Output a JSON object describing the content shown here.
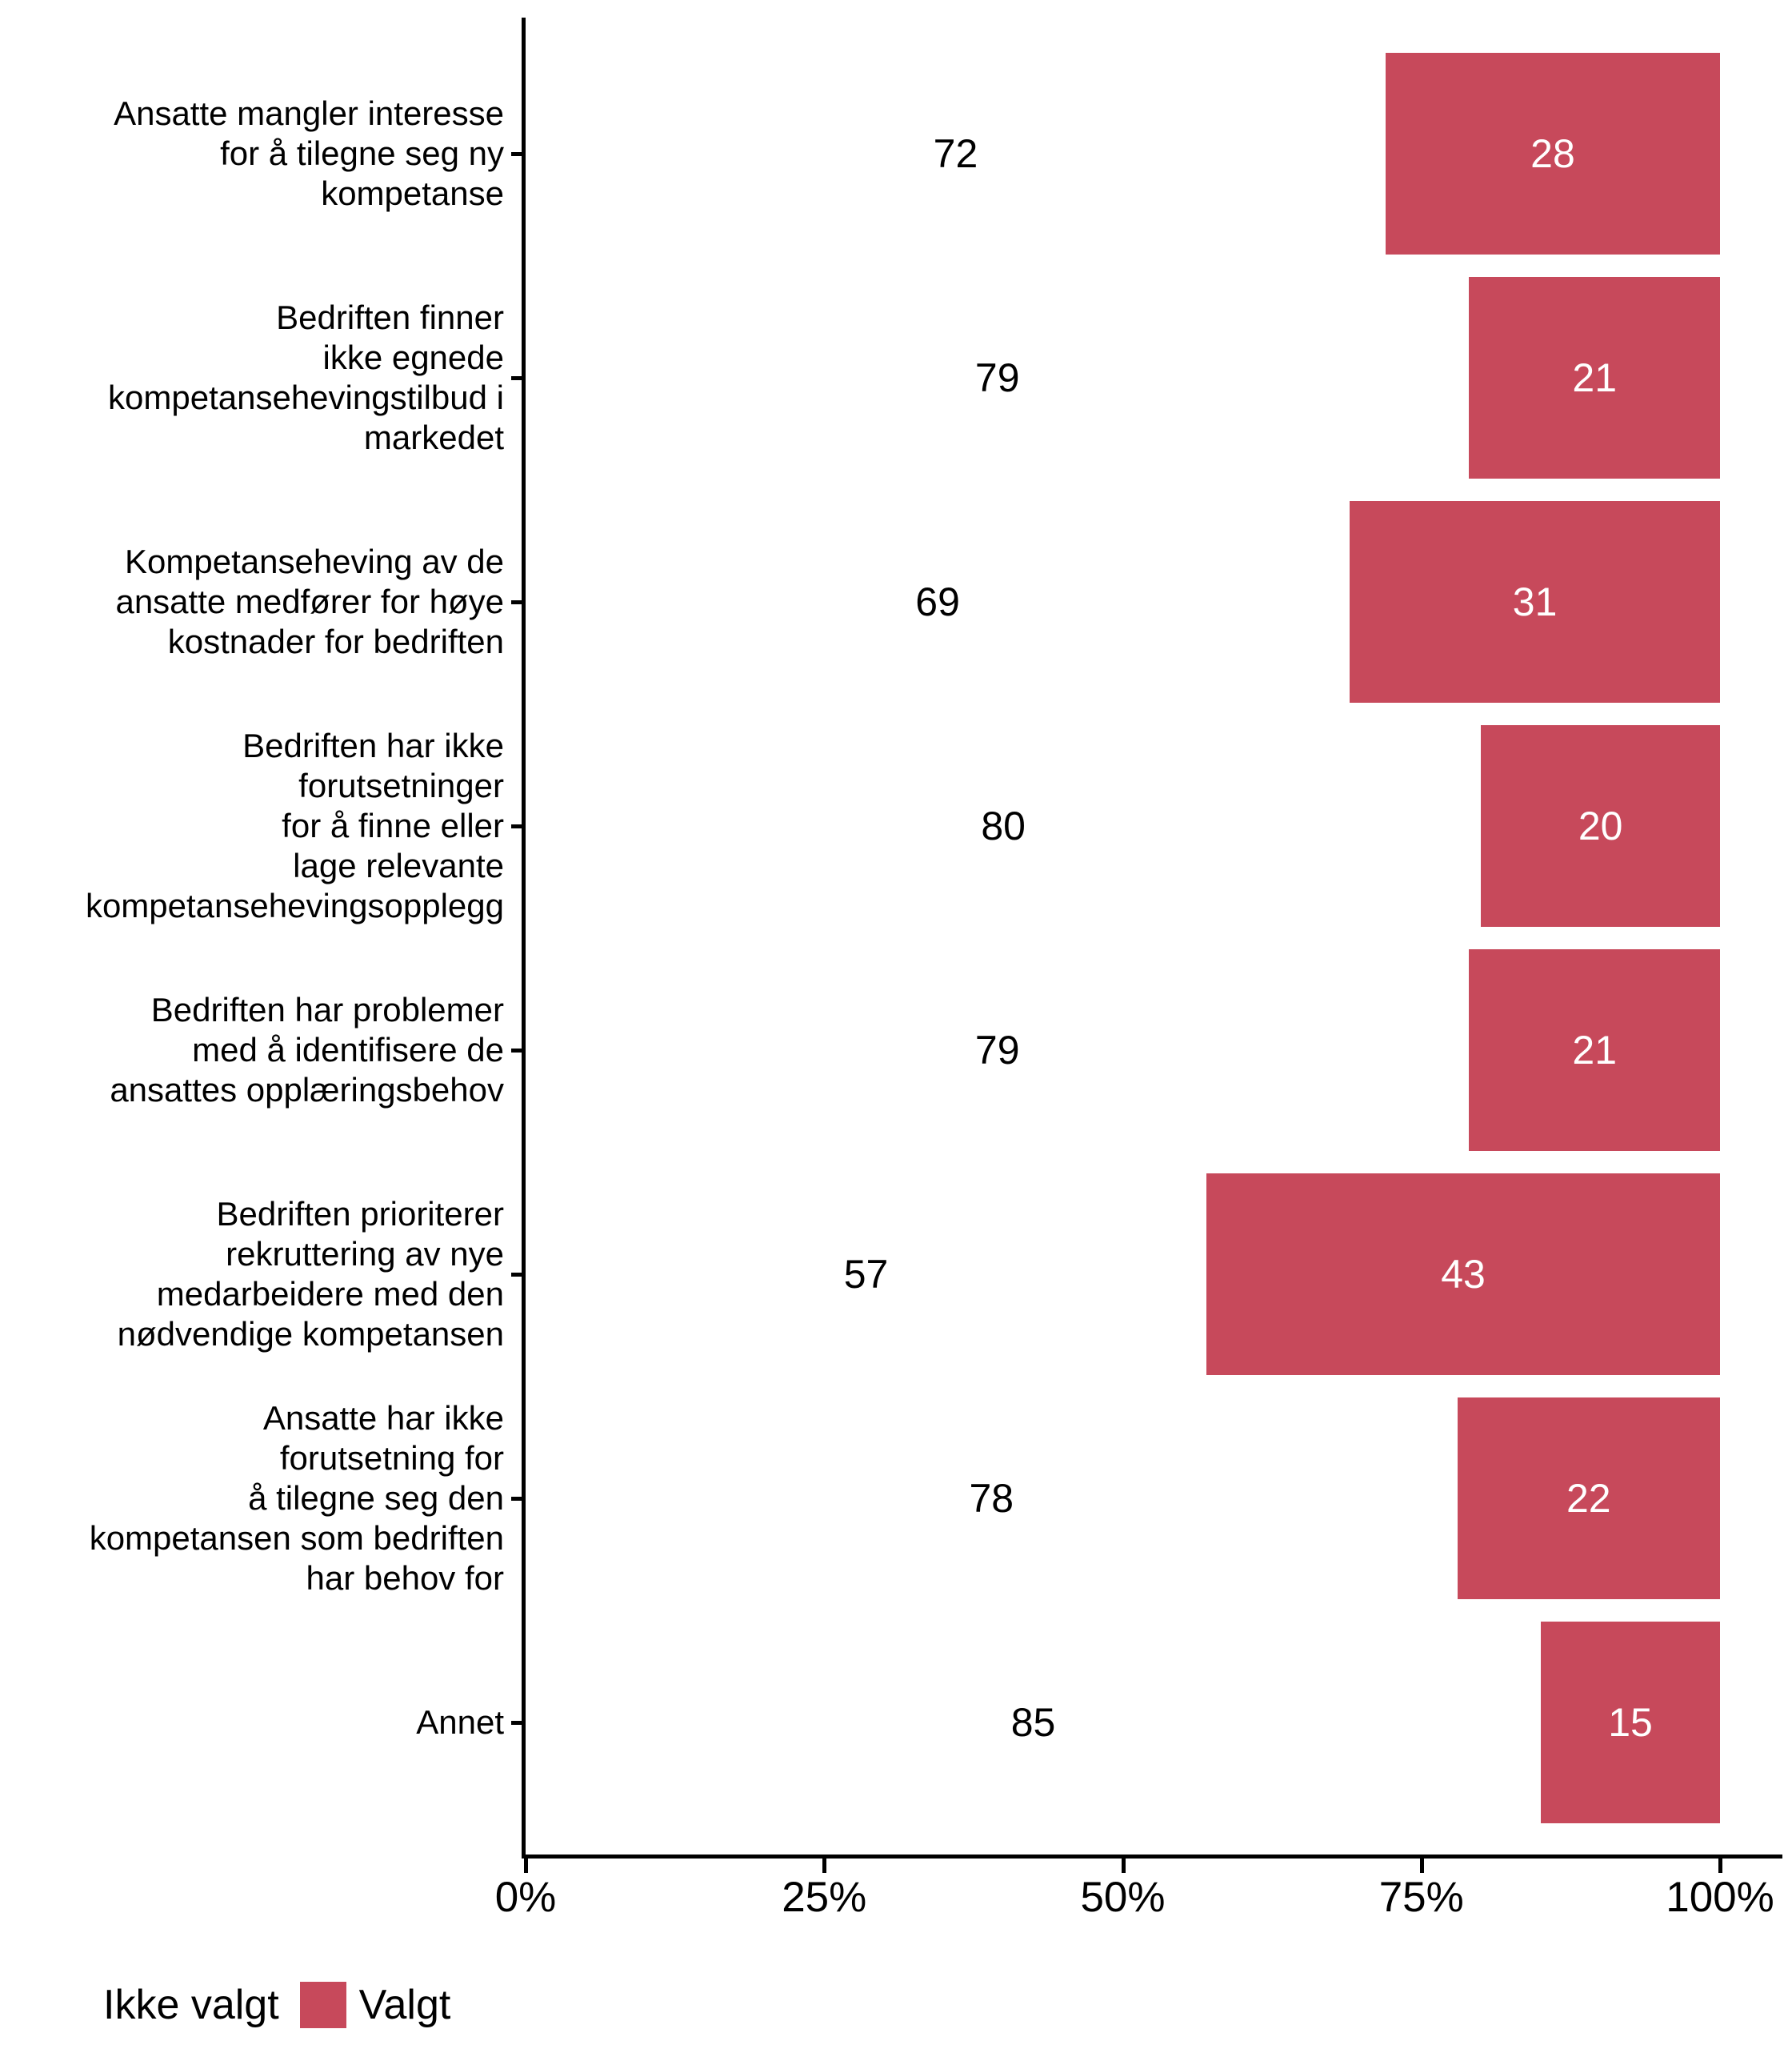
{
  "chart_data": {
    "type": "bar",
    "orientation": "horizontal",
    "stacked": true,
    "units": "percent of respondents",
    "title": "",
    "xlabel": "",
    "ylabel": "",
    "grid": false,
    "axis_color": "#000000",
    "text_color": "#000000",
    "categories": [
      "Ansatte mangler interesse\nfor å tilegne seg ny\nkompetanse",
      "Bedriften finner\nikke egnede\nkompetansehevingstilbud i\nmarkedet",
      "Kompetanseheving av de\nansatte medfører for høye\nkostnader for bedriften",
      "Bedriften har ikke\nforutsetninger\nfor å finne eller\nlage relevante\nkompetansehevingsopplegg",
      "Bedriften har problemer\nmed å identifisere de\nansattes opplæringsbehov",
      "Bedriften prioriterer\nrekruttering av nye\nmedarbeidere med den\nnødvendige kompetansen",
      "Ansatte har ikke\nforutsetning for\nå tilegne seg den\nkompetansen som bedriften\nhar behov for",
      "Annet"
    ],
    "series": [
      {
        "name": "Ikke valgt",
        "color": "#FFFFFF",
        "label_color": "#000000",
        "values": [
          72,
          79,
          69,
          80,
          79,
          57,
          78,
          85
        ]
      },
      {
        "name": "Valgt",
        "color": "#C7495B",
        "label_color": "#FFFFFF",
        "values": [
          28,
          21,
          31,
          20,
          21,
          43,
          22,
          15
        ]
      }
    ],
    "x_axis": {
      "min": 0,
      "max": 100,
      "tick_labels": [
        "0%",
        "25%",
        "50%",
        "75%",
        "100%"
      ],
      "tick_values": [
        0,
        25,
        50,
        75,
        100
      ]
    },
    "legend": {
      "position": "bottom-left",
      "entries": [
        {
          "label": "Ikke valgt",
          "color": "#FFFFFF"
        },
        {
          "label": "Valgt",
          "color": "#C7495B"
        }
      ]
    }
  }
}
